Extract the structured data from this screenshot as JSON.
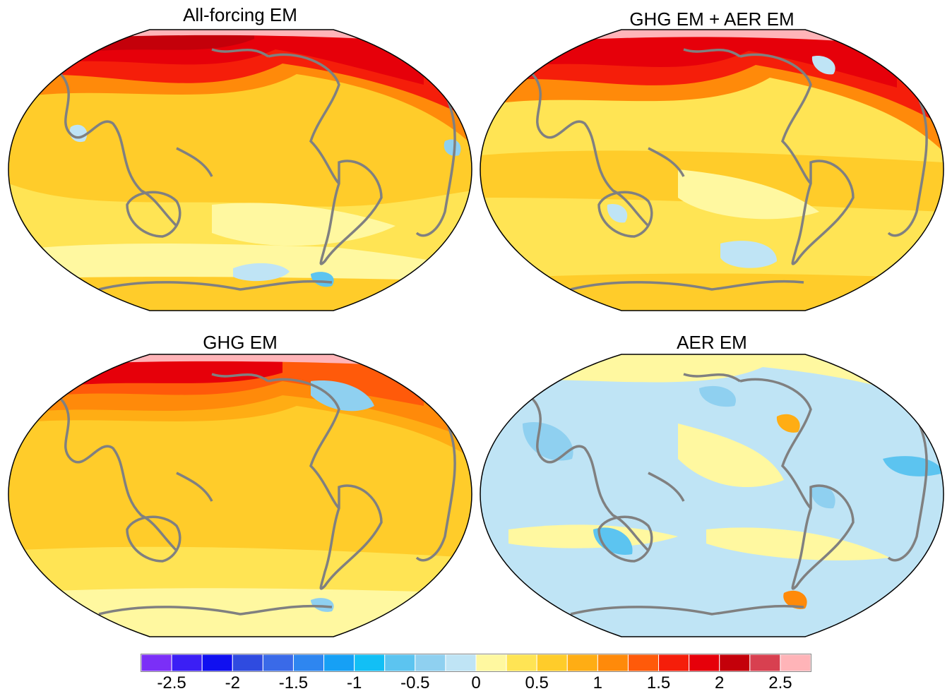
{
  "panels": [
    {
      "key": "all",
      "title": "All-forcing EM"
    },
    {
      "key": "ghgaer",
      "title": "GHG EM + AER EM"
    },
    {
      "key": "ghg",
      "title": "GHG EM"
    },
    {
      "key": "aer",
      "title": "AER EM"
    }
  ],
  "colorbar": {
    "colors": [
      "#7b2ff7",
      "#3b1ff5",
      "#1010f0",
      "#2f4be0",
      "#3a6ae8",
      "#2e86f0",
      "#16a0f5",
      "#12bff5",
      "#5cc4f0",
      "#8fd0f0",
      "#bfe4f5",
      "#fff8a0",
      "#ffe454",
      "#ffcc2a",
      "#ffad14",
      "#ff8a0a",
      "#ff5a0a",
      "#f51e0a",
      "#e6000a",
      "#c4000a",
      "#d84050",
      "#ffb4b8"
    ],
    "tick_labels": [
      "-2.5",
      "-2",
      "-1.5",
      "-1",
      "-0.5",
      "0",
      "0.5",
      "1",
      "1.5",
      "2",
      "2.5"
    ]
  }
}
